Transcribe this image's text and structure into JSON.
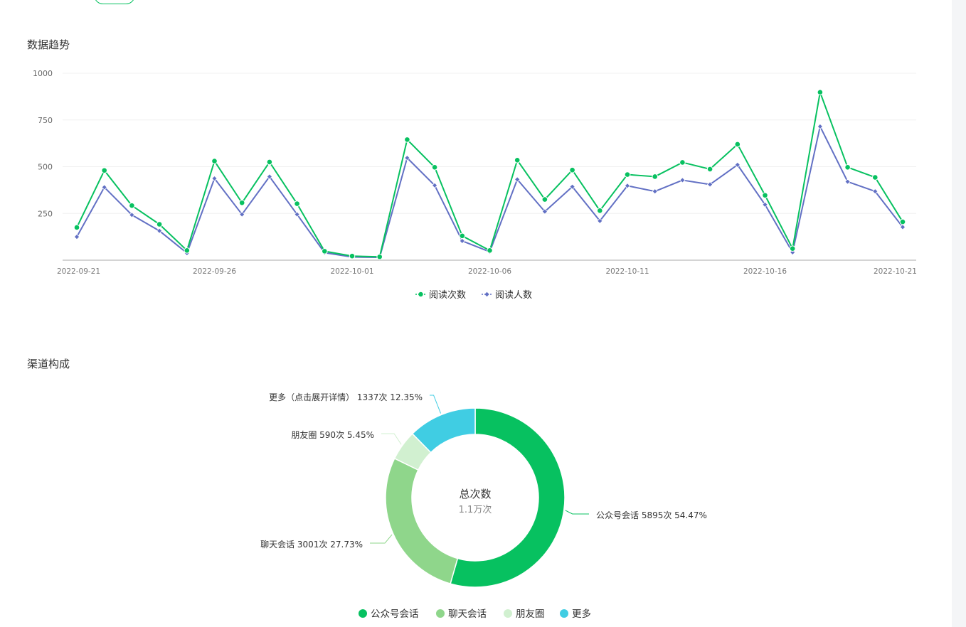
{
  "header": {
    "trend_title": "数据趋势",
    "channel_title": "渠道构成"
  },
  "colors": {
    "green": "#07c160",
    "blue": "#6270c4",
    "light_green": "#8fd68b",
    "pale_green": "#d1f0d0",
    "cyan": "#40cde3"
  },
  "chart_data": [
    {
      "type": "line",
      "title": "数据趋势",
      "xlabel": "",
      "ylabel": "",
      "ylim": [
        0,
        1000
      ],
      "y_ticks": [
        250,
        500,
        750,
        1000
      ],
      "x_tick_labels": [
        "2022-09-21",
        "2022-09-26",
        "2022-10-01",
        "2022-10-06",
        "2022-10-11",
        "2022-10-16",
        "2022-10-21"
      ],
      "x_tick_indices": [
        0,
        5,
        10,
        15,
        20,
        25,
        30
      ],
      "grid": true,
      "legend_position": "bottom-center",
      "series": [
        {
          "name": "阅读次数",
          "color": "#07c160",
          "marker": "circle",
          "values": [
            175,
            480,
            292,
            192,
            52,
            530,
            307,
            525,
            302,
            48,
            22,
            18,
            645,
            497,
            130,
            52,
            535,
            325,
            482,
            265,
            458,
            447,
            523,
            487,
            620,
            347,
            62,
            898,
            497,
            443,
            205
          ]
        },
        {
          "name": "阅读人数",
          "color": "#6270c4",
          "marker": "diamond",
          "values": [
            125,
            390,
            242,
            157,
            38,
            437,
            245,
            447,
            245,
            40,
            17,
            15,
            547,
            400,
            103,
            45,
            432,
            260,
            393,
            210,
            398,
            368,
            428,
            405,
            510,
            297,
            42,
            715,
            420,
            368,
            177
          ]
        }
      ]
    },
    {
      "type": "pie",
      "title": "渠道构成",
      "donut": true,
      "center_label": "总次数",
      "center_value": "1.1万次",
      "legend_position": "bottom-center",
      "slices": [
        {
          "name": "公众号会话",
          "value": 5895,
          "percent": "54.47%",
          "label": "公众号会话 5895次 54.47%",
          "color": "#07c160"
        },
        {
          "name": "聊天会话",
          "value": 3001,
          "percent": "27.73%",
          "label": "聊天会话 3001次 27.73%",
          "color": "#8fd68b"
        },
        {
          "name": "朋友圈",
          "value": 590,
          "percent": "5.45%",
          "label": "朋友圈 590次 5.45%",
          "color": "#d1f0d0"
        },
        {
          "name": "更多",
          "value": 1337,
          "percent": "12.35%",
          "label": "更多（点击展开详情） 1337次 12.35%",
          "color": "#40cde3"
        }
      ]
    }
  ]
}
